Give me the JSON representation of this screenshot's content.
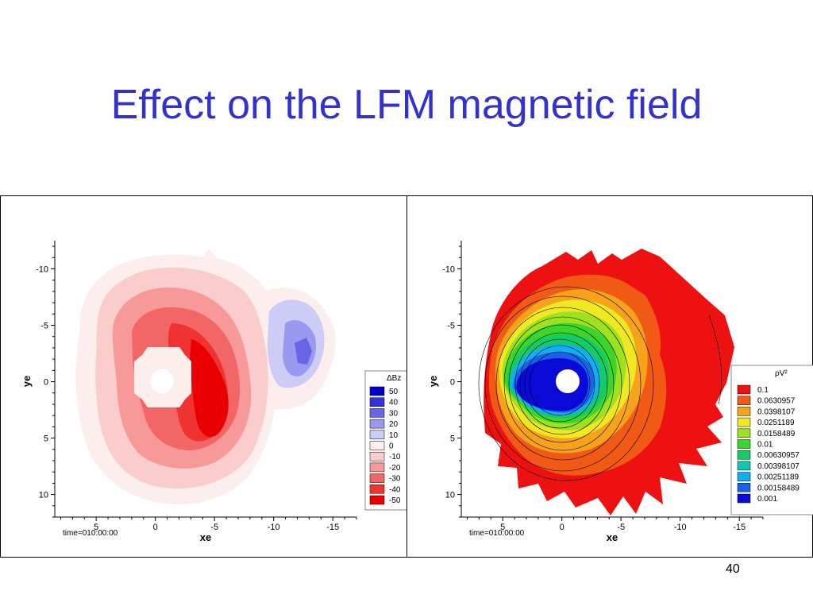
{
  "slide": {
    "title": "Effect on the LFM magnetic field",
    "page_number": "40"
  },
  "chart_data": [
    {
      "type": "heatmap",
      "title": "",
      "xlabel": "xe",
      "ylabel": "ye",
      "x_ticks": [
        "5",
        "0",
        "-5",
        "-10",
        "-15"
      ],
      "y_ticks": [
        "-10",
        "-5",
        "0",
        "5",
        "10"
      ],
      "xlim": [
        8.5,
        -17
      ],
      "ylim": [
        -12.5,
        12
      ],
      "y_axis_inverted": true,
      "x_axis_reversed": true,
      "time_label": "time=010:00:00",
      "legend_position": "right",
      "legend": {
        "title": "ΔBz",
        "levels": [
          {
            "label": "50",
            "color": "#0000cc"
          },
          {
            "label": "40",
            "color": "#3333dd"
          },
          {
            "label": "30",
            "color": "#6666e6"
          },
          {
            "label": "20",
            "color": "#9999ef"
          },
          {
            "label": "10",
            "color": "#ccccf7"
          },
          {
            "label": "0",
            "color": "#fdeeee"
          },
          {
            "label": "-10",
            "color": "#fbcccc"
          },
          {
            "label": "-20",
            "color": "#f79999"
          },
          {
            "label": "-30",
            "color": "#f36666"
          },
          {
            "label": "-40",
            "color": "#ef3333"
          },
          {
            "label": "-50",
            "color": "#ea0000"
          }
        ]
      },
      "pattern": "negative ΔBz lobes (red) on the dayside and nightside around a central hole; positive ΔBz (blue) at xe ≈ -10"
    },
    {
      "type": "heatmap",
      "title": "",
      "xlabel": "xe",
      "ylabel": "ye",
      "x_ticks": [
        "5",
        "0",
        "-5",
        "-10",
        "-15"
      ],
      "y_ticks": [
        "-10",
        "-5",
        "0",
        "5",
        "10"
      ],
      "xlim": [
        8.5,
        -17
      ],
      "ylim": [
        -12.5,
        12
      ],
      "y_axis_inverted": true,
      "x_axis_reversed": true,
      "time_label": "time=010:00:00",
      "legend_position": "right",
      "legend": {
        "title": "ρV²",
        "levels": [
          {
            "label": "0.1",
            "color": "#ee1111"
          },
          {
            "label": "0.0630957",
            "color": "#f05a14"
          },
          {
            "label": "0.0398107",
            "color": "#f6a21a"
          },
          {
            "label": "0.0251189",
            "color": "#f0e820"
          },
          {
            "label": "0.0158489",
            "color": "#9ee21e"
          },
          {
            "label": "0.01",
            "color": "#3cd62a"
          },
          {
            "label": "0.00630957",
            "color": "#14cc66"
          },
          {
            "label": "0.00398107",
            "color": "#10c8b0"
          },
          {
            "label": "0.00251189",
            "color": "#0fb0ee"
          },
          {
            "label": "0.00158489",
            "color": "#1a62ea"
          },
          {
            "label": "0.001",
            "color": "#0a0ad8"
          }
        ]
      },
      "pattern": "low ρV² (blue) core around the inner hole increasing outward through green and yellow to red at the outer boundary; black contour lines"
    }
  ]
}
